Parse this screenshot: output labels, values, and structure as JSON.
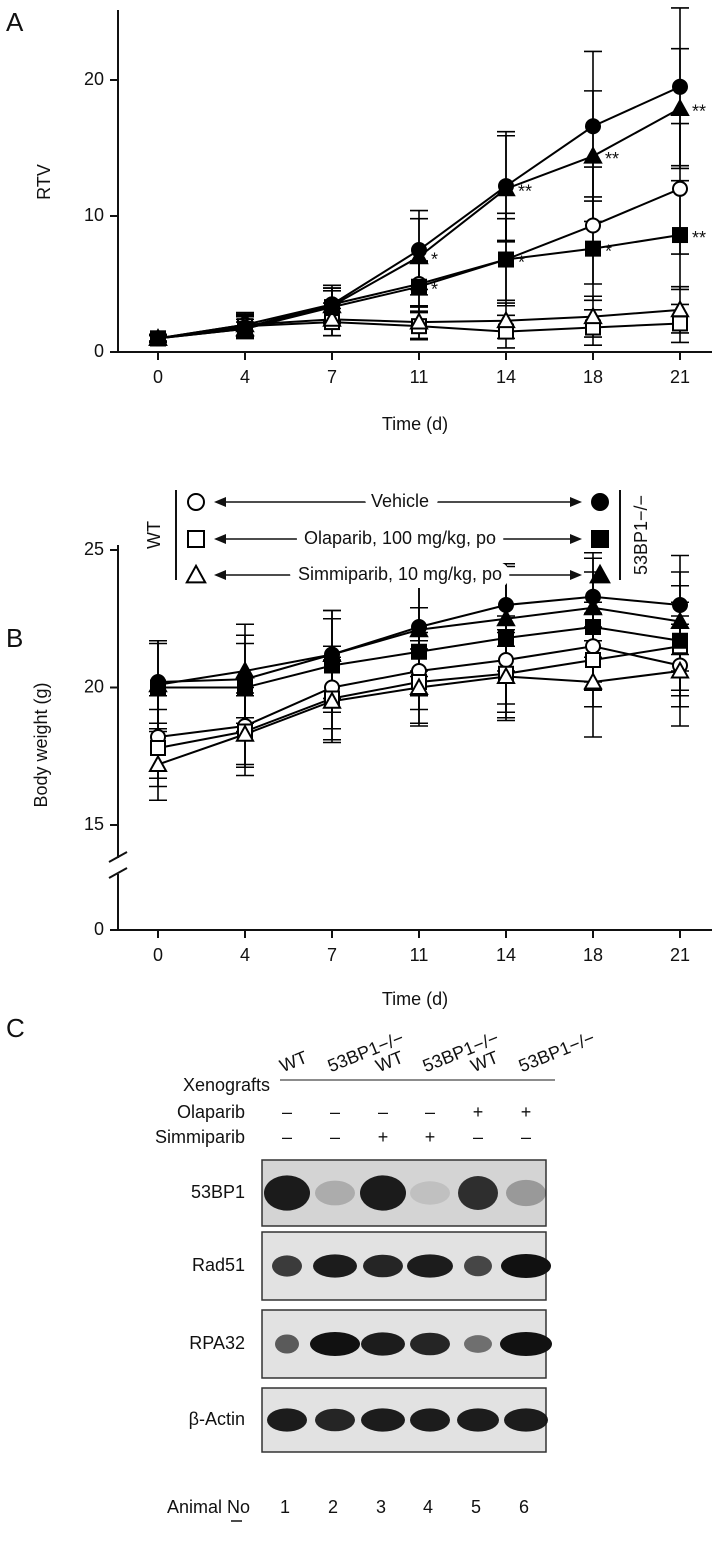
{
  "chart_data": [
    {
      "type": "line",
      "panel": "A",
      "ylabel": "RTV",
      "xlabel": "Time (d)",
      "categories": [
        "0",
        "4",
        "7",
        "11",
        "14",
        "18",
        "21"
      ],
      "ylim": [
        0,
        25
      ],
      "yticks": [
        0,
        10,
        20
      ],
      "series": [
        {
          "marker": "circle",
          "filled": false,
          "color": "#000000",
          "values": [
            1,
            2.0,
            3.5,
            5.0,
            6.8,
            9.3,
            12.0
          ],
          "errors": [
            0.2,
            0.9,
            1.2,
            1.7,
            3.0,
            4.3,
            4.8
          ]
        },
        {
          "marker": "square",
          "filled": false,
          "color": "#000000",
          "values": [
            1,
            1.9,
            2.2,
            1.9,
            1.5,
            1.8,
            2.1
          ],
          "errors": [
            0.2,
            0.8,
            1.0,
            1.0,
            1.2,
            1.3,
            1.4
          ]
        },
        {
          "marker": "triangle",
          "filled": false,
          "color": "#000000",
          "values": [
            1,
            2.0,
            2.4,
            2.2,
            2.3,
            2.6,
            3.1
          ],
          "errors": [
            0.2,
            0.8,
            1.2,
            1.2,
            1.3,
            1.5,
            1.7
          ]
        },
        {
          "marker": "circle",
          "filled": true,
          "color": "#000000",
          "values": [
            1,
            1.8,
            3.5,
            7.5,
            12.2,
            16.6,
            19.5
          ],
          "errors": [
            0.3,
            0.8,
            1.4,
            2.9,
            4.0,
            5.5,
            5.8
          ]
        },
        {
          "marker": "square",
          "filled": true,
          "color": "#000000",
          "values": [
            1,
            1.7,
            3.3,
            4.8,
            6.8,
            7.6,
            8.6
          ],
          "errors": [
            0.2,
            0.5,
            1.2,
            1.8,
            3.4,
            3.8,
            4.0
          ],
          "significance": [
            null,
            null,
            null,
            "*",
            "*",
            "*",
            "**"
          ]
        },
        {
          "marker": "triangle",
          "filled": true,
          "color": "#000000",
          "values": [
            1,
            1.7,
            3.4,
            7.0,
            12.0,
            14.4,
            17.9
          ],
          "errors": [
            0.3,
            0.7,
            1.3,
            2.8,
            3.9,
            4.8,
            4.4
          ],
          "significance": [
            null,
            null,
            null,
            "*",
            "**",
            "**",
            "**"
          ]
        }
      ]
    },
    {
      "type": "line",
      "panel": "B",
      "ylabel": "Body weight (g)",
      "xlabel": "Time (d)",
      "categories": [
        "0",
        "4",
        "7",
        "11",
        "14",
        "18",
        "21"
      ],
      "ylim": [
        15,
        25
      ],
      "yticks": [
        0,
        15,
        20,
        25
      ],
      "axis_break": true,
      "series": [
        {
          "marker": "circle",
          "filled": false,
          "color": "#000000",
          "values": [
            18.2,
            18.6,
            20.0,
            20.6,
            21.0,
            21.5,
            20.8
          ],
          "errors": [
            1.5,
            1.4,
            1.5,
            1.4,
            1.6,
            1.6,
            1.5
          ]
        },
        {
          "marker": "square",
          "filled": false,
          "color": "#000000",
          "values": [
            17.8,
            18.4,
            19.6,
            20.2,
            20.5,
            21.0,
            21.5
          ],
          "errors": [
            1.4,
            1.3,
            1.5,
            1.5,
            1.6,
            1.7,
            1.6
          ]
        },
        {
          "marker": "triangle",
          "filled": false,
          "color": "#000000",
          "values": [
            17.2,
            18.3,
            19.5,
            20.0,
            20.4,
            20.2,
            20.6
          ],
          "errors": [
            1.3,
            1.5,
            1.5,
            1.4,
            1.6,
            2.0,
            2.0
          ]
        },
        {
          "marker": "circle",
          "filled": true,
          "color": "#000000",
          "values": [
            20.2,
            20.3,
            21.2,
            22.2,
            23.0,
            23.3,
            23.0
          ],
          "errors": [
            1.5,
            1.6,
            1.6,
            1.6,
            1.5,
            1.6,
            1.8
          ]
        },
        {
          "marker": "square",
          "filled": true,
          "color": "#000000",
          "values": [
            20.0,
            20.0,
            20.8,
            21.3,
            21.8,
            22.2,
            21.7
          ],
          "errors": [
            1.6,
            1.6,
            1.7,
            1.6,
            2.7,
            2.0,
            2.0
          ]
        },
        {
          "marker": "triangle",
          "filled": true,
          "color": "#000000",
          "values": [
            20.1,
            20.6,
            21.2,
            22.1,
            22.5,
            22.9,
            22.4
          ],
          "errors": [
            1.6,
            1.7,
            1.6,
            1.7,
            1.9,
            1.8,
            1.8
          ]
        }
      ]
    }
  ],
  "legend": {
    "treatments": [
      "Vehicle",
      "Olaparib, 100 mg/kg, po",
      "Simmiparib, 10 mg/kg, po"
    ],
    "groups": [
      "WT",
      "53BP1−/−"
    ]
  },
  "blot": {
    "panel": "C",
    "header": "Xenografts",
    "samples": [
      "WT",
      "53BP1−/−",
      "WT",
      "53BP1−/−",
      "WT",
      "53BP1−/−"
    ],
    "treatments": [
      {
        "name": "Olaparib",
        "signs": [
          "–",
          "–",
          "–",
          "–",
          "+",
          "+"
        ]
      },
      {
        "name": "Simmiparib",
        "signs": [
          "–",
          "–",
          "+",
          "+",
          "–",
          "–"
        ]
      }
    ],
    "proteins": [
      "53BP1",
      "Rad51",
      "RPA32",
      "β-Actin"
    ],
    "footer": "Animal No",
    "animals": [
      "1",
      "2",
      "3",
      "4",
      "5",
      "6"
    ]
  }
}
